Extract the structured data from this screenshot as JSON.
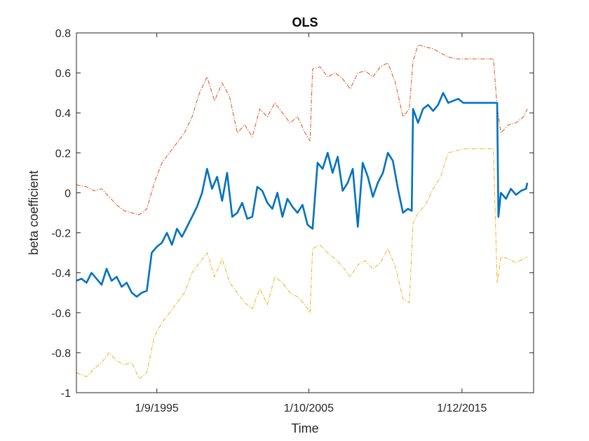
{
  "chart_data": {
    "type": "line",
    "title": "OLS",
    "xlabel": "Time",
    "ylabel": "beta coefficient",
    "xlim": [
      "1990-05-01",
      "2020-09-01"
    ],
    "ylim": [
      -1,
      0.8
    ],
    "yticks": [
      -1,
      -0.8,
      -0.6,
      -0.4,
      -0.2,
      0,
      0.2,
      0.4,
      0.6,
      0.8
    ],
    "ytick_labels": [
      "-1",
      "-0.8",
      "-0.6",
      "-0.4",
      "-0.2",
      "0",
      "0.2",
      "0.4",
      "0.6",
      "0.8"
    ],
    "xticks": [
      "1995-09-01",
      "2005-10-01",
      "2015-12-01"
    ],
    "xtick_labels": [
      "1/9/1995",
      "1/10/2005",
      "1/12/2015"
    ],
    "grid": false,
    "series": [
      {
        "role": "upper",
        "color": "#D95319",
        "style": "dash-dot",
        "x": [
          "1990-05-01",
          "1991-01-01",
          "1991-07-01",
          "1992-01-01",
          "1992-07-01",
          "1993-01-01",
          "1993-07-01",
          "1994-01-01",
          "1994-07-01",
          "1995-01-01",
          "1995-07-01",
          "1996-01-01",
          "1996-07-01",
          "1997-01-01",
          "1997-07-01",
          "1998-01-01",
          "1998-07-01",
          "1999-01-01",
          "1999-07-01",
          "2000-01-01",
          "2000-07-01",
          "2001-01-01",
          "2001-07-01",
          "2002-01-01",
          "2002-07-01",
          "2003-01-01",
          "2003-07-01",
          "2004-01-01",
          "2004-07-01",
          "2005-01-01",
          "2005-07-01",
          "2005-11-01",
          "2006-01-01",
          "2006-07-01",
          "2007-01-01",
          "2007-07-01",
          "2008-01-01",
          "2008-07-01",
          "2009-01-01",
          "2009-07-01",
          "2010-01-01",
          "2010-07-01",
          "2011-01-01",
          "2011-07-01",
          "2012-01-01",
          "2012-06-01",
          "2012-09-01",
          "2013-01-01",
          "2013-07-01",
          "2014-01-01",
          "2014-07-01",
          "2015-01-01",
          "2015-07-01",
          "2016-01-01",
          "2016-07-01",
          "2017-01-01",
          "2017-07-01",
          "2018-01-01",
          "2018-04-01",
          "2018-07-01",
          "2019-01-01",
          "2019-07-01",
          "2020-01-01",
          "2020-04-01"
        ],
        "y": [
          0.04,
          0.03,
          0.01,
          0.02,
          -0.02,
          -0.06,
          -0.09,
          -0.1,
          -0.11,
          -0.08,
          0.05,
          0.15,
          0.2,
          0.25,
          0.3,
          0.38,
          0.5,
          0.58,
          0.46,
          0.55,
          0.48,
          0.3,
          0.34,
          0.28,
          0.42,
          0.38,
          0.45,
          0.4,
          0.35,
          0.38,
          0.3,
          0.26,
          0.62,
          0.63,
          0.58,
          0.6,
          0.57,
          0.52,
          0.6,
          0.61,
          0.58,
          0.63,
          0.65,
          0.55,
          0.38,
          0.42,
          0.66,
          0.74,
          0.73,
          0.72,
          0.7,
          0.68,
          0.67,
          0.67,
          0.67,
          0.67,
          0.67,
          0.67,
          0.43,
          0.3,
          0.34,
          0.35,
          0.38,
          0.42
        ]
      },
      {
        "role": "estimate",
        "color": "#0072BD",
        "style": "solid",
        "x": [
          "1990-05-01",
          "1990-09-01",
          "1991-01-01",
          "1991-05-01",
          "1991-09-01",
          "1992-01-01",
          "1992-05-01",
          "1992-09-01",
          "1993-01-01",
          "1993-05-01",
          "1993-09-01",
          "1994-01-01",
          "1994-05-01",
          "1994-09-01",
          "1995-01-01",
          "1995-05-01",
          "1995-09-01",
          "1996-01-01",
          "1996-05-01",
          "1996-09-01",
          "1997-01-01",
          "1997-05-01",
          "1997-09-01",
          "1998-01-01",
          "1998-05-01",
          "1998-09-01",
          "1999-01-01",
          "1999-05-01",
          "1999-09-01",
          "2000-01-01",
          "2000-05-01",
          "2000-09-01",
          "2001-01-01",
          "2001-05-01",
          "2001-09-01",
          "2002-01-01",
          "2002-05-01",
          "2002-09-01",
          "2003-01-01",
          "2003-05-01",
          "2003-09-01",
          "2004-01-01",
          "2004-05-01",
          "2004-09-01",
          "2005-01-01",
          "2005-05-01",
          "2005-09-01",
          "2006-01-01",
          "2006-05-01",
          "2006-09-01",
          "2007-01-01",
          "2007-05-01",
          "2007-09-01",
          "2008-01-01",
          "2008-05-01",
          "2008-09-01",
          "2009-01-01",
          "2009-05-01",
          "2009-09-01",
          "2010-01-01",
          "2010-05-01",
          "2010-09-01",
          "2011-01-01",
          "2011-05-01",
          "2011-09-01",
          "2012-01-01",
          "2012-05-01",
          "2012-08-01",
          "2012-09-01",
          "2013-01-01",
          "2013-05-01",
          "2013-09-01",
          "2014-01-01",
          "2014-05-01",
          "2014-09-01",
          "2015-01-01",
          "2015-05-01",
          "2015-09-01",
          "2016-01-01",
          "2016-05-01",
          "2016-09-01",
          "2017-01-01",
          "2017-05-01",
          "2017-09-01",
          "2018-01-01",
          "2018-04-01",
          "2018-05-01",
          "2018-07-01",
          "2018-11-01",
          "2019-03-01",
          "2019-07-01",
          "2019-11-01",
          "2020-03-01",
          "2020-04-01"
        ],
        "y": [
          -0.44,
          -0.43,
          -0.45,
          -0.4,
          -0.43,
          -0.46,
          -0.38,
          -0.44,
          -0.42,
          -0.47,
          -0.45,
          -0.5,
          -0.52,
          -0.5,
          -0.49,
          -0.3,
          -0.27,
          -0.25,
          -0.2,
          -0.26,
          -0.18,
          -0.22,
          -0.17,
          -0.12,
          -0.07,
          0.0,
          0.12,
          0.02,
          0.08,
          -0.04,
          0.1,
          -0.12,
          -0.1,
          -0.05,
          -0.13,
          -0.12,
          0.03,
          0.01,
          -0.05,
          -0.08,
          0.0,
          -0.12,
          -0.03,
          -0.07,
          -0.1,
          -0.06,
          -0.16,
          -0.18,
          0.15,
          0.12,
          0.2,
          0.1,
          0.18,
          0.01,
          0.05,
          0.12,
          -0.17,
          0.15,
          0.08,
          -0.02,
          0.05,
          0.1,
          0.2,
          0.16,
          0.02,
          -0.1,
          -0.08,
          -0.09,
          0.42,
          0.35,
          0.42,
          0.44,
          0.41,
          0.44,
          0.5,
          0.45,
          0.46,
          0.47,
          0.45,
          0.45,
          0.45,
          0.45,
          0.45,
          0.45,
          0.45,
          0.45,
          -0.12,
          0.0,
          -0.03,
          0.02,
          -0.01,
          0.01,
          0.02,
          0.05
        ]
      },
      {
        "role": "lower",
        "color": "#EDB120",
        "style": "dash-dot",
        "x": [
          "1990-05-01",
          "1991-01-01",
          "1991-07-01",
          "1992-01-01",
          "1992-07-01",
          "1993-01-01",
          "1993-07-01",
          "1994-01-01",
          "1994-07-01",
          "1995-01-01",
          "1995-07-01",
          "1996-01-01",
          "1996-07-01",
          "1997-01-01",
          "1997-07-01",
          "1998-01-01",
          "1998-07-01",
          "1999-01-01",
          "1999-07-01",
          "2000-01-01",
          "2000-07-01",
          "2001-01-01",
          "2001-07-01",
          "2002-01-01",
          "2002-07-01",
          "2003-01-01",
          "2003-07-01",
          "2004-01-01",
          "2004-07-01",
          "2005-01-01",
          "2005-07-01",
          "2005-11-01",
          "2006-01-01",
          "2006-07-01",
          "2007-01-01",
          "2007-07-01",
          "2008-01-01",
          "2008-07-01",
          "2009-01-01",
          "2009-07-01",
          "2010-01-01",
          "2010-07-01",
          "2011-01-01",
          "2011-07-01",
          "2012-01-01",
          "2012-06-01",
          "2012-09-01",
          "2013-01-01",
          "2013-07-01",
          "2014-01-01",
          "2014-07-01",
          "2015-01-01",
          "2015-07-01",
          "2016-01-01",
          "2016-07-01",
          "2017-01-01",
          "2017-07-01",
          "2018-01-01",
          "2018-04-01",
          "2018-07-01",
          "2019-01-01",
          "2019-07-01",
          "2020-01-01",
          "2020-04-01"
        ],
        "y": [
          -0.9,
          -0.92,
          -0.88,
          -0.85,
          -0.8,
          -0.84,
          -0.86,
          -0.85,
          -0.93,
          -0.9,
          -0.72,
          -0.65,
          -0.6,
          -0.55,
          -0.5,
          -0.4,
          -0.35,
          -0.3,
          -0.42,
          -0.33,
          -0.45,
          -0.5,
          -0.55,
          -0.58,
          -0.48,
          -0.56,
          -0.42,
          -0.45,
          -0.5,
          -0.52,
          -0.56,
          -0.6,
          -0.28,
          -0.26,
          -0.3,
          -0.33,
          -0.37,
          -0.42,
          -0.36,
          -0.34,
          -0.38,
          -0.35,
          -0.28,
          -0.37,
          -0.53,
          -0.55,
          -0.15,
          -0.1,
          -0.06,
          0.02,
          0.08,
          0.2,
          0.21,
          0.22,
          0.22,
          0.22,
          0.22,
          0.22,
          -0.45,
          -0.32,
          -0.33,
          -0.35,
          -0.33,
          -0.32
        ]
      }
    ]
  }
}
